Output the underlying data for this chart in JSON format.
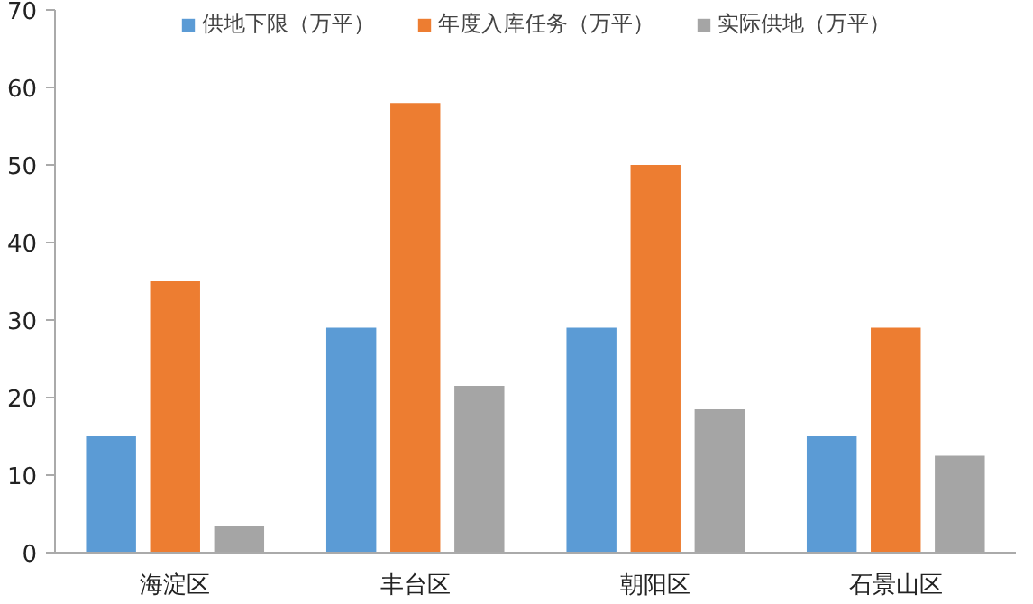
{
  "chart_data": {
    "type": "bar",
    "categories": [
      "海淀区",
      "丰台区",
      "朝阳区",
      "石景山区"
    ],
    "series": [
      {
        "name": "供地下限（万平）",
        "color": "#5b9bd5",
        "values": [
          15,
          29,
          29,
          15
        ]
      },
      {
        "name": "年度入库任务（万平）",
        "color": "#ed7d31",
        "values": [
          35,
          58,
          50,
          29
        ]
      },
      {
        "name": "实际供地（万平）",
        "color": "#a5a5a5",
        "values": [
          3.5,
          21.5,
          18.5,
          12.5
        ]
      }
    ],
    "ylim": [
      0,
      70
    ],
    "yticks": [
      0,
      10,
      20,
      30,
      40,
      50,
      60,
      70
    ],
    "grid": false,
    "legend": "top"
  }
}
